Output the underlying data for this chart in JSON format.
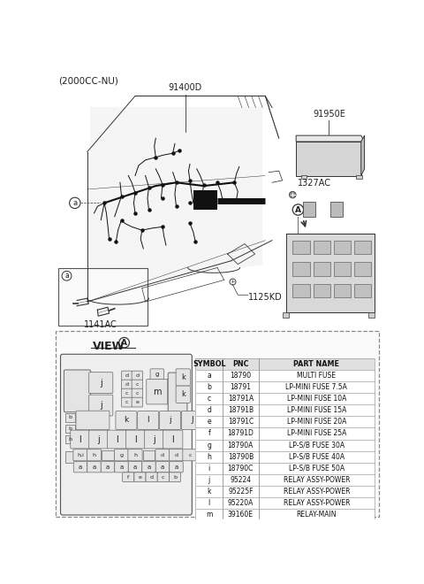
{
  "title_top": "(2000CC-NU)",
  "bg_color": "#ffffff",
  "table_data": [
    [
      "SYMBOL",
      "PNC",
      "PART NAME"
    ],
    [
      "a",
      "18790",
      "MULTI FUSE"
    ],
    [
      "b",
      "18791",
      "LP-MINI FUSE 7.5A"
    ],
    [
      "c",
      "18791A",
      "LP-MINI FUSE 10A"
    ],
    [
      "d",
      "18791B",
      "LP-MINI FUSE 15A"
    ],
    [
      "e",
      "18791C",
      "LP-MINI FUSE 20A"
    ],
    [
      "f",
      "18791D",
      "LP-MINI FUSE 25A"
    ],
    [
      "g",
      "18790A",
      "LP-S/B FUSE 30A"
    ],
    [
      "h",
      "18790B",
      "LP-S/B FUSE 40A"
    ],
    [
      "i",
      "18790C",
      "LP-S/B FUSE 50A"
    ],
    [
      "j",
      "95224",
      "RELAY ASSY-POWER"
    ],
    [
      "k",
      "95225F",
      "RELAY ASSY-POWER"
    ],
    [
      "l",
      "95220A",
      "RELAY ASSY-POWER"
    ],
    [
      "m",
      "39160E",
      "RELAY-MAIN"
    ]
  ]
}
